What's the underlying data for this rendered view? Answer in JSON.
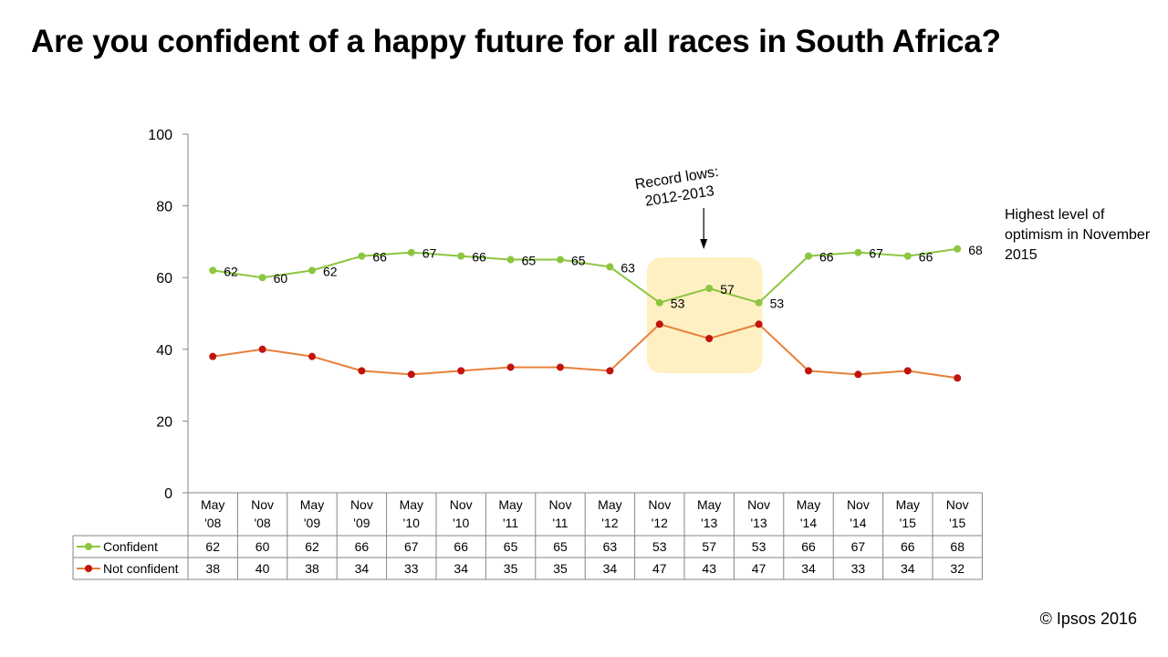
{
  "title": "Are you confident of a happy future for all races in South Africa?",
  "copyright": "© Ipsos 2016",
  "chart_data": {
    "type": "line",
    "categories": [
      [
        "May",
        "'08"
      ],
      [
        "Nov",
        "'08"
      ],
      [
        "May",
        "'09"
      ],
      [
        "Nov",
        "'09"
      ],
      [
        "May",
        "'10"
      ],
      [
        "Nov",
        "'10"
      ],
      [
        "May",
        "'11"
      ],
      [
        "Nov",
        "'11"
      ],
      [
        "May",
        "'12"
      ],
      [
        "Nov",
        "'12"
      ],
      [
        "May",
        "'13"
      ],
      [
        "Nov",
        "'13"
      ],
      [
        "May",
        "'14"
      ],
      [
        "Nov",
        "'14"
      ],
      [
        "May",
        "'15"
      ],
      [
        "Nov",
        "'15"
      ]
    ],
    "series": [
      {
        "name": "Confident",
        "values": [
          62,
          60,
          62,
          66,
          67,
          66,
          65,
          65,
          63,
          53,
          57,
          53,
          66,
          67,
          66,
          68
        ],
        "line_color": "#8CC63F",
        "marker_color": "#8CC63F",
        "show_labels": true
      },
      {
        "name": "Not confident",
        "values": [
          38,
          40,
          38,
          34,
          33,
          34,
          35,
          35,
          34,
          47,
          43,
          47,
          34,
          33,
          34,
          32
        ],
        "line_color": "#E8803A",
        "marker_color": "#C0140C",
        "show_labels": false
      }
    ],
    "ylim": [
      0,
      100
    ],
    "yticks": [
      0,
      20,
      40,
      60,
      80,
      100
    ],
    "xlabel": "",
    "ylabel": "",
    "grid": false,
    "data_table": true,
    "highlight": {
      "from_index": 9,
      "to_index": 11,
      "color": "#FFF0C4"
    },
    "annotation": {
      "lines": [
        "Record lows:",
        "2012-2013"
      ],
      "target_index": 10
    },
    "side_note": "Highest level of optimism in November 2015"
  }
}
